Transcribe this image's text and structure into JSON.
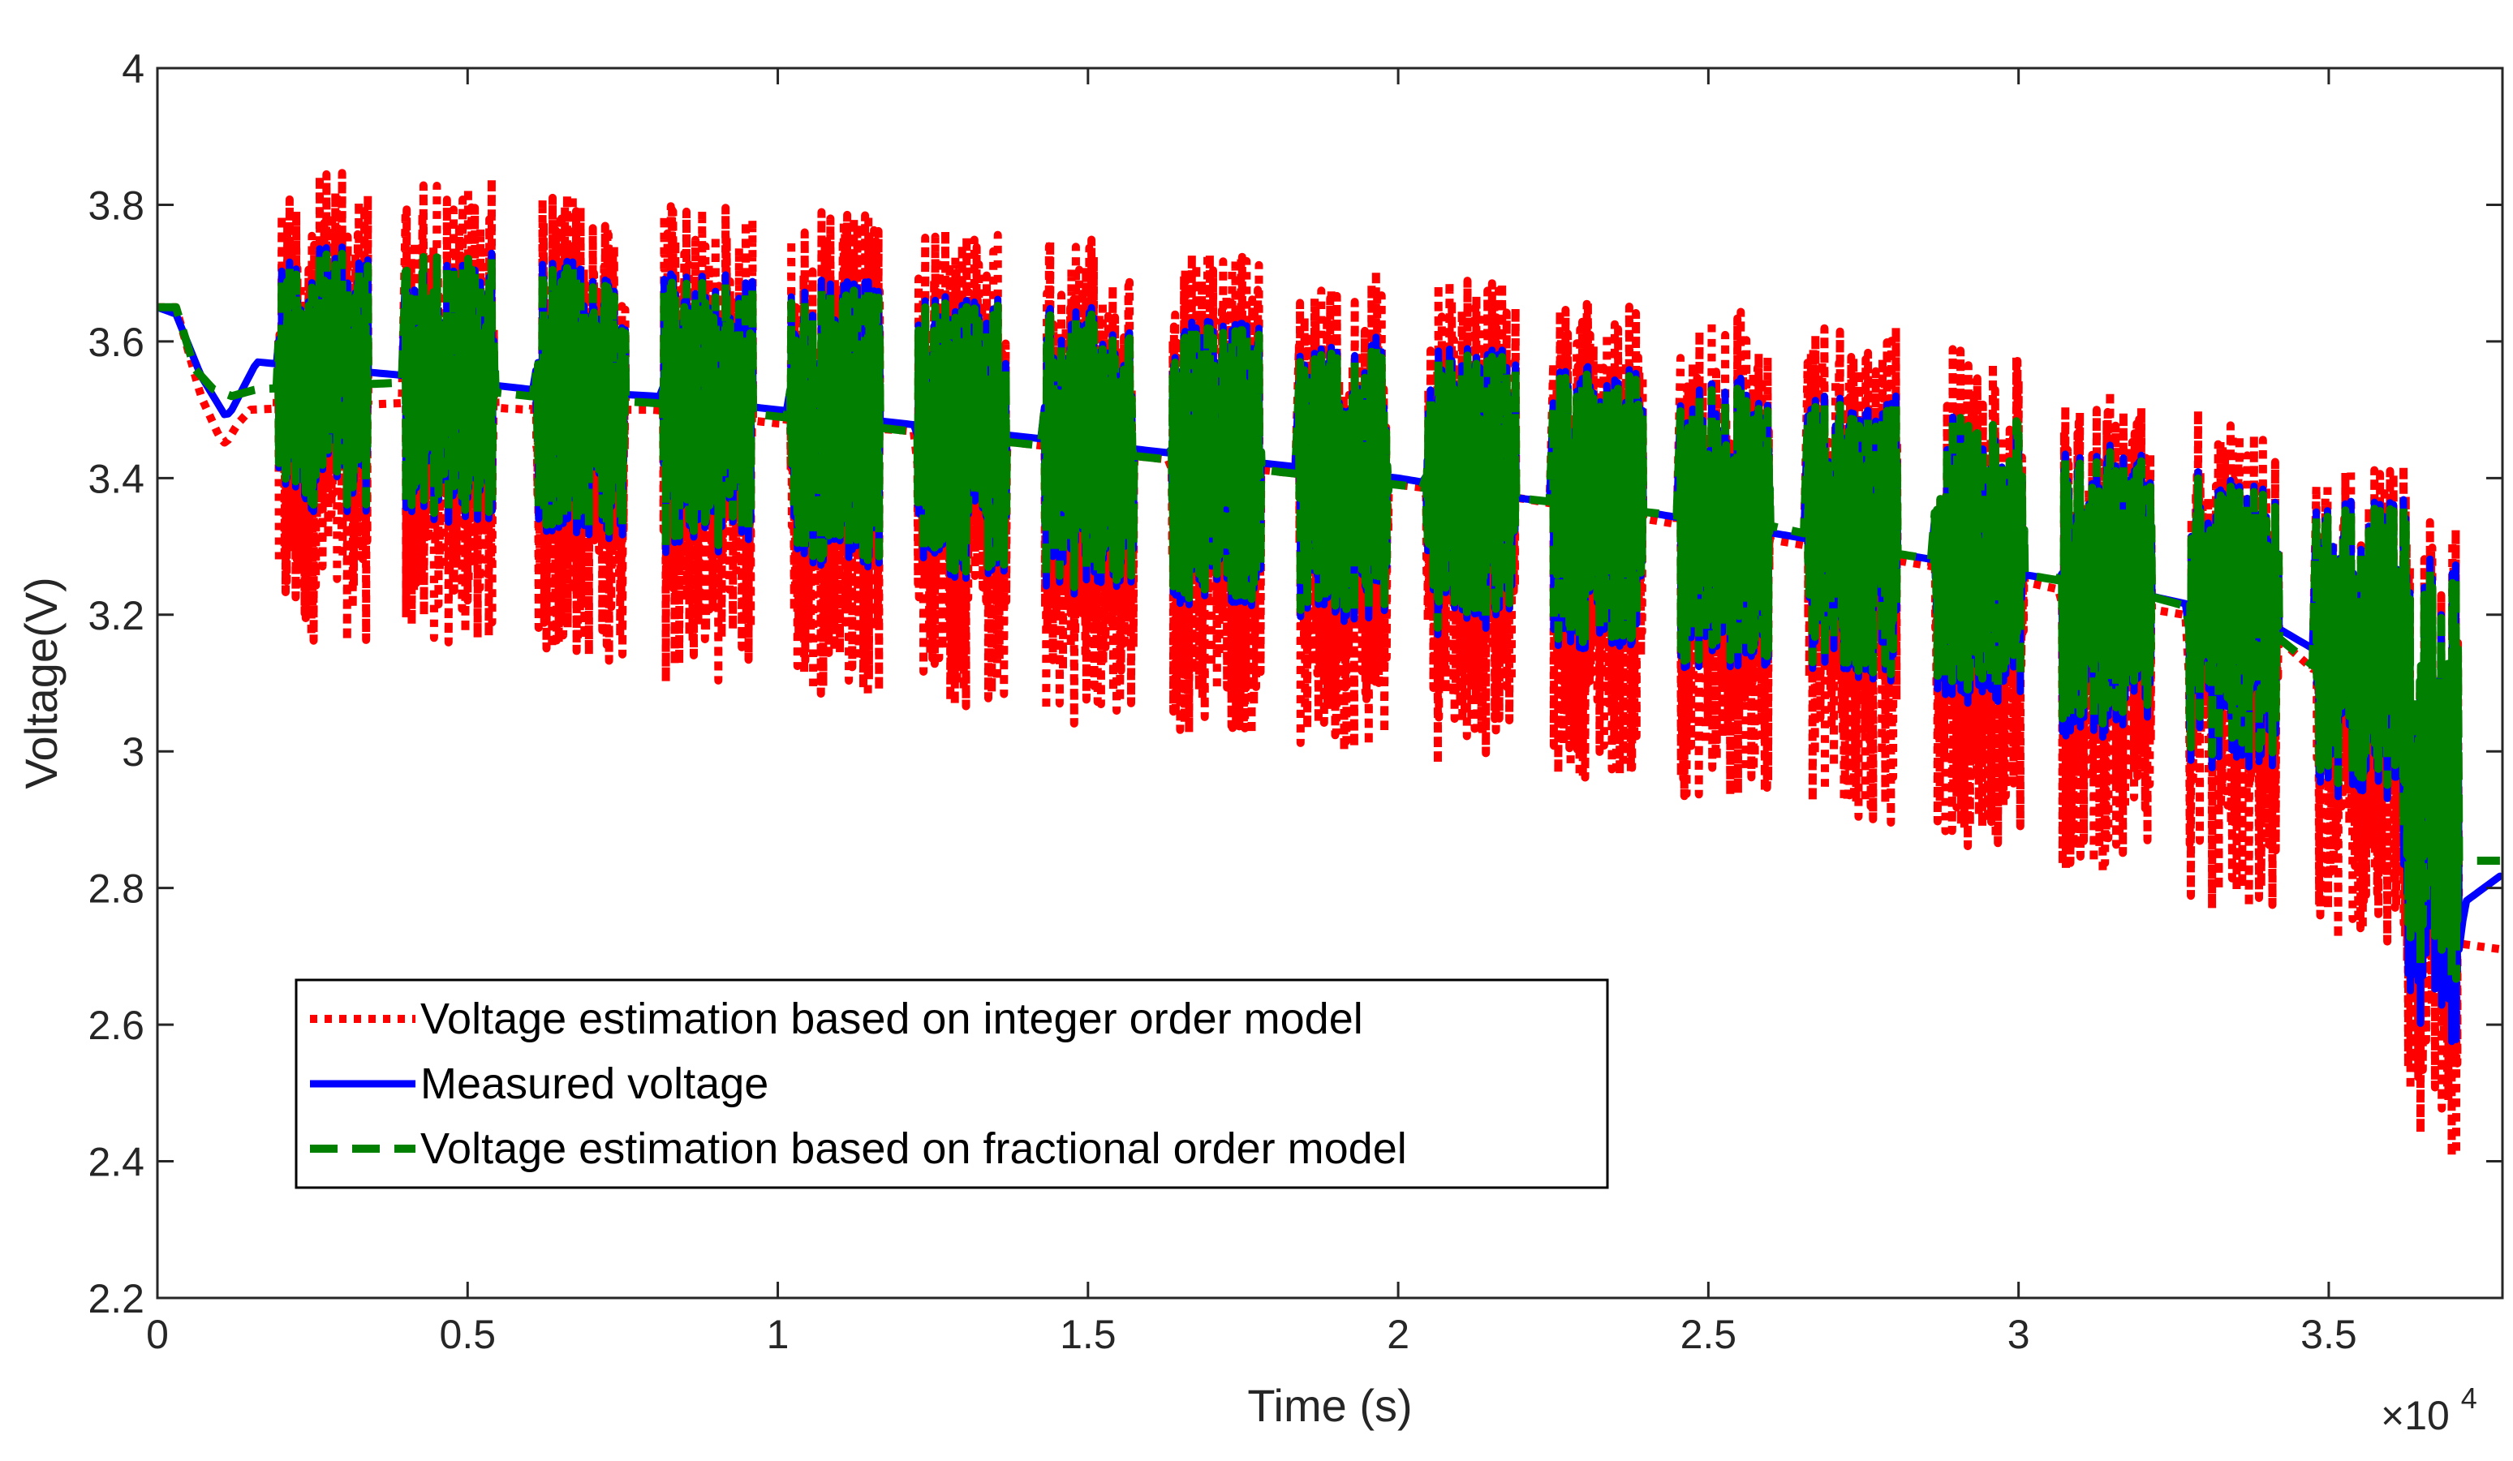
{
  "chart_data": {
    "type": "line",
    "title": "",
    "xlabel": "Time (s)",
    "ylabel": "Voltage(V)",
    "xlim": [
      0,
      37800
    ],
    "ylim": [
      2.2,
      4.0
    ],
    "x_ticks": [
      0,
      5000,
      10000,
      15000,
      20000,
      25000,
      30000,
      35000
    ],
    "x_tick_labels": [
      "0",
      "0.5",
      "1",
      "1.5",
      "2",
      "2.5",
      "3",
      "3.5"
    ],
    "x_exponent_base": "×10",
    "x_exponent_power": "4",
    "y_ticks": [
      2.2,
      2.4,
      2.6,
      2.8,
      3.0,
      3.2,
      3.4,
      3.6,
      3.8,
      4.0
    ],
    "y_tick_labels": [
      "2.2",
      "2.4",
      "2.6",
      "2.8",
      "3",
      "3.2",
      "3.4",
      "3.6",
      "3.8",
      "4"
    ],
    "grid": false,
    "legend_position": "bottom-left",
    "colors": {
      "integer": "#ff0000",
      "measured": "#0000ff",
      "fractional": "#007f00",
      "axis": "#262626"
    },
    "series": [
      {
        "name": "Voltage estimation based on integer order model",
        "color": "#ff0000",
        "style": "dotted",
        "rest_anchors": [
          [
            0,
            3.65
          ],
          [
            300,
            3.65
          ],
          [
            700,
            3.52
          ],
          [
            1000,
            3.46
          ],
          [
            1100,
            3.45
          ],
          [
            1300,
            3.48
          ],
          [
            1500,
            3.5
          ],
          [
            4000,
            3.51
          ],
          [
            6000,
            3.5
          ],
          [
            8000,
            3.5
          ],
          [
            10000,
            3.48
          ],
          [
            12000,
            3.47
          ],
          [
            14000,
            3.45
          ],
          [
            16000,
            3.43
          ],
          [
            18000,
            3.41
          ],
          [
            20000,
            3.39
          ],
          [
            22000,
            3.37
          ],
          [
            24000,
            3.34
          ],
          [
            26000,
            3.31
          ],
          [
            28000,
            3.28
          ],
          [
            30000,
            3.25
          ],
          [
            32000,
            3.21
          ],
          [
            34000,
            3.18
          ],
          [
            35500,
            3.06
          ],
          [
            37000,
            2.72
          ],
          [
            37800,
            2.71
          ]
        ],
        "pulse_ranges": [
          [
            3.16,
            3.85
          ],
          [
            3.15,
            3.84
          ],
          [
            3.13,
            3.82
          ],
          [
            3.1,
            3.8
          ],
          [
            3.08,
            3.79
          ],
          [
            3.06,
            3.77
          ],
          [
            3.04,
            3.75
          ],
          [
            3.02,
            3.73
          ],
          [
            3.0,
            3.71
          ],
          [
            2.98,
            3.69
          ],
          [
            2.96,
            3.67
          ],
          [
            2.93,
            3.65
          ],
          [
            2.89,
            3.62
          ],
          [
            2.86,
            3.59
          ],
          [
            2.82,
            3.53
          ],
          [
            2.76,
            3.5
          ],
          [
            2.72,
            3.42
          ],
          [
            2.4,
            3.36
          ]
        ]
      },
      {
        "name": "Measured voltage",
        "color": "#0000ff",
        "style": "solid",
        "rest_anchors": [
          [
            0,
            3.65
          ],
          [
            300,
            3.64
          ],
          [
            700,
            3.55
          ],
          [
            1100,
            3.49
          ],
          [
            1200,
            3.5
          ],
          [
            1600,
            3.57
          ],
          [
            4000,
            3.55
          ],
          [
            6000,
            3.53
          ],
          [
            8000,
            3.52
          ],
          [
            10000,
            3.5
          ],
          [
            12000,
            3.48
          ],
          [
            14000,
            3.46
          ],
          [
            16000,
            3.44
          ],
          [
            18000,
            3.42
          ],
          [
            20000,
            3.4
          ],
          [
            22000,
            3.37
          ],
          [
            24000,
            3.35
          ],
          [
            26000,
            3.32
          ],
          [
            28000,
            3.29
          ],
          [
            30000,
            3.26
          ],
          [
            32000,
            3.23
          ],
          [
            34000,
            3.19
          ],
          [
            35500,
            3.11
          ],
          [
            36600,
            2.9
          ],
          [
            36900,
            2.57
          ],
          [
            37200,
            2.78
          ],
          [
            37800,
            2.82
          ]
        ],
        "pulse_ranges": [
          [
            3.35,
            3.74
          ],
          [
            3.33,
            3.73
          ],
          [
            3.31,
            3.72
          ],
          [
            3.29,
            3.7
          ],
          [
            3.27,
            3.69
          ],
          [
            3.25,
            3.67
          ],
          [
            3.23,
            3.65
          ],
          [
            3.21,
            3.63
          ],
          [
            3.19,
            3.61
          ],
          [
            3.17,
            3.59
          ],
          [
            3.15,
            3.57
          ],
          [
            3.12,
            3.55
          ],
          [
            3.1,
            3.52
          ],
          [
            3.07,
            3.49
          ],
          [
            3.02,
            3.45
          ],
          [
            2.97,
            3.41
          ],
          [
            2.93,
            3.37
          ],
          [
            2.57,
            3.3
          ]
        ]
      },
      {
        "name": "Voltage estimation based on fractional order model",
        "color": "#007f00",
        "style": "dashed",
        "rest_anchors": [
          [
            0,
            3.65
          ],
          [
            300,
            3.65
          ],
          [
            600,
            3.56
          ],
          [
            900,
            3.53
          ],
          [
            1200,
            3.52
          ],
          [
            1600,
            3.53
          ],
          [
            4000,
            3.54
          ],
          [
            6000,
            3.52
          ],
          [
            8000,
            3.51
          ],
          [
            10000,
            3.49
          ],
          [
            12000,
            3.47
          ],
          [
            14000,
            3.45
          ],
          [
            16000,
            3.43
          ],
          [
            18000,
            3.41
          ],
          [
            20000,
            3.39
          ],
          [
            22000,
            3.37
          ],
          [
            24000,
            3.35
          ],
          [
            26000,
            3.33
          ],
          [
            28000,
            3.29
          ],
          [
            30000,
            3.26
          ],
          [
            32000,
            3.23
          ],
          [
            34000,
            3.18
          ],
          [
            35500,
            3.07
          ],
          [
            36700,
            2.88
          ],
          [
            37000,
            2.84
          ],
          [
            37800,
            2.84
          ]
        ],
        "pulse_ranges": [
          [
            3.36,
            3.73
          ],
          [
            3.34,
            3.73
          ],
          [
            3.32,
            3.71
          ],
          [
            3.3,
            3.69
          ],
          [
            3.28,
            3.68
          ],
          [
            3.26,
            3.66
          ],
          [
            3.24,
            3.64
          ],
          [
            3.22,
            3.62
          ],
          [
            3.2,
            3.6
          ],
          [
            3.18,
            3.58
          ],
          [
            3.16,
            3.56
          ],
          [
            3.13,
            3.54
          ],
          [
            3.11,
            3.51
          ],
          [
            3.09,
            3.49
          ],
          [
            3.04,
            3.44
          ],
          [
            2.99,
            3.4
          ],
          [
            2.95,
            3.36
          ],
          [
            2.66,
            3.28
          ]
        ]
      }
    ],
    "pulse_blocks": [
      [
        1950,
        3400
      ],
      [
        4000,
        5450
      ],
      [
        6100,
        7550
      ],
      [
        8150,
        9600
      ],
      [
        10200,
        11650
      ],
      [
        12250,
        13700
      ],
      [
        14300,
        15750
      ],
      [
        16350,
        17800
      ],
      [
        18400,
        19850
      ],
      [
        20450,
        21900
      ],
      [
        22500,
        23950
      ],
      [
        24550,
        26000
      ],
      [
        26600,
        28050
      ],
      [
        28650,
        30100
      ],
      [
        30700,
        32150
      ],
      [
        32750,
        34200
      ],
      [
        34800,
        36250
      ],
      [
        36200,
        37100
      ]
    ]
  }
}
